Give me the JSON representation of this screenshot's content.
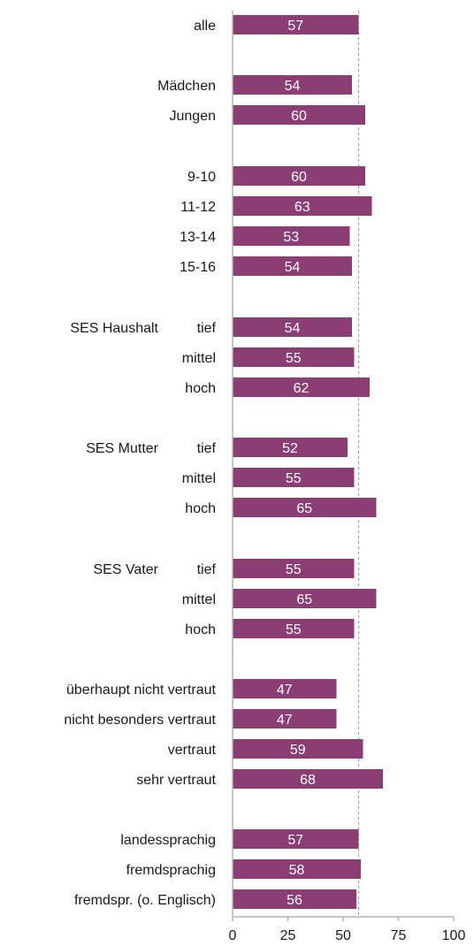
{
  "chart_data": {
    "type": "bar",
    "orientation": "horizontal",
    "title": "",
    "xlabel": "",
    "ylabel": "",
    "xlim": [
      0,
      100
    ],
    "xticks": [
      0,
      25,
      50,
      75,
      100
    ],
    "reference_line": 57,
    "grid": false,
    "colors": {
      "bar": "#8c3d73",
      "bar_label": "#ffffff",
      "axis": "#b3b3b3",
      "reference": "#9a9a9a",
      "text": "#1a1a1a"
    },
    "categories": [
      "alle",
      "Mädchen",
      "Jungen",
      "9-10",
      "11-12",
      "13-14",
      "15-16",
      "tief",
      "mittel",
      "hoch",
      "tief",
      "mittel",
      "hoch",
      "tief",
      "mittel",
      "hoch",
      "überhaupt nicht vertraut",
      "nicht besonders vertraut",
      "vertraut",
      "sehr vertraut",
      "landessprachig",
      "fremdsprachig",
      "fremdspr. (o. Englisch)"
    ],
    "values": [
      57,
      54,
      60,
      60,
      63,
      53,
      54,
      54,
      55,
      62,
      52,
      55,
      65,
      55,
      65,
      55,
      47,
      47,
      59,
      68,
      57,
      58,
      56
    ],
    "group_labels": [
      {
        "text": "SES Haushalt",
        "category_index": 7
      },
      {
        "text": "SES Mutter",
        "category_index": 10
      },
      {
        "text": "SES Vater",
        "category_index": 13
      }
    ]
  }
}
